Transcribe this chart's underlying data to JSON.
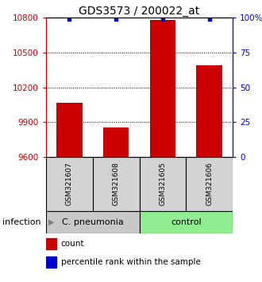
{
  "title": "GDS3573 / 200022_at",
  "samples": [
    "GSM321607",
    "GSM321608",
    "GSM321605",
    "GSM321606"
  ],
  "counts": [
    10065,
    9855,
    10780,
    10390
  ],
  "percentile_ranks": [
    99,
    99,
    99,
    99
  ],
  "ylim_left": [
    9600,
    10800
  ],
  "yticks_left": [
    9600,
    9900,
    10200,
    10500,
    10800
  ],
  "yticks_right": [
    0,
    25,
    50,
    75,
    100
  ],
  "bar_color": "#cc0000",
  "dot_color": "#0000cc",
  "groups": [
    {
      "label": "C. pneumonia",
      "samples": [
        0,
        1
      ],
      "color": "#c8c8c8"
    },
    {
      "label": "control",
      "samples": [
        2,
        3
      ],
      "color": "#90ee90"
    }
  ],
  "group_label": "infection",
  "legend_items": [
    {
      "color": "#cc0000",
      "label": "count"
    },
    {
      "color": "#0000cc",
      "label": "percentile rank within the sample"
    }
  ],
  "title_fontsize": 10,
  "axis_left_color": "#cc0000",
  "axis_right_color": "#0000cc"
}
